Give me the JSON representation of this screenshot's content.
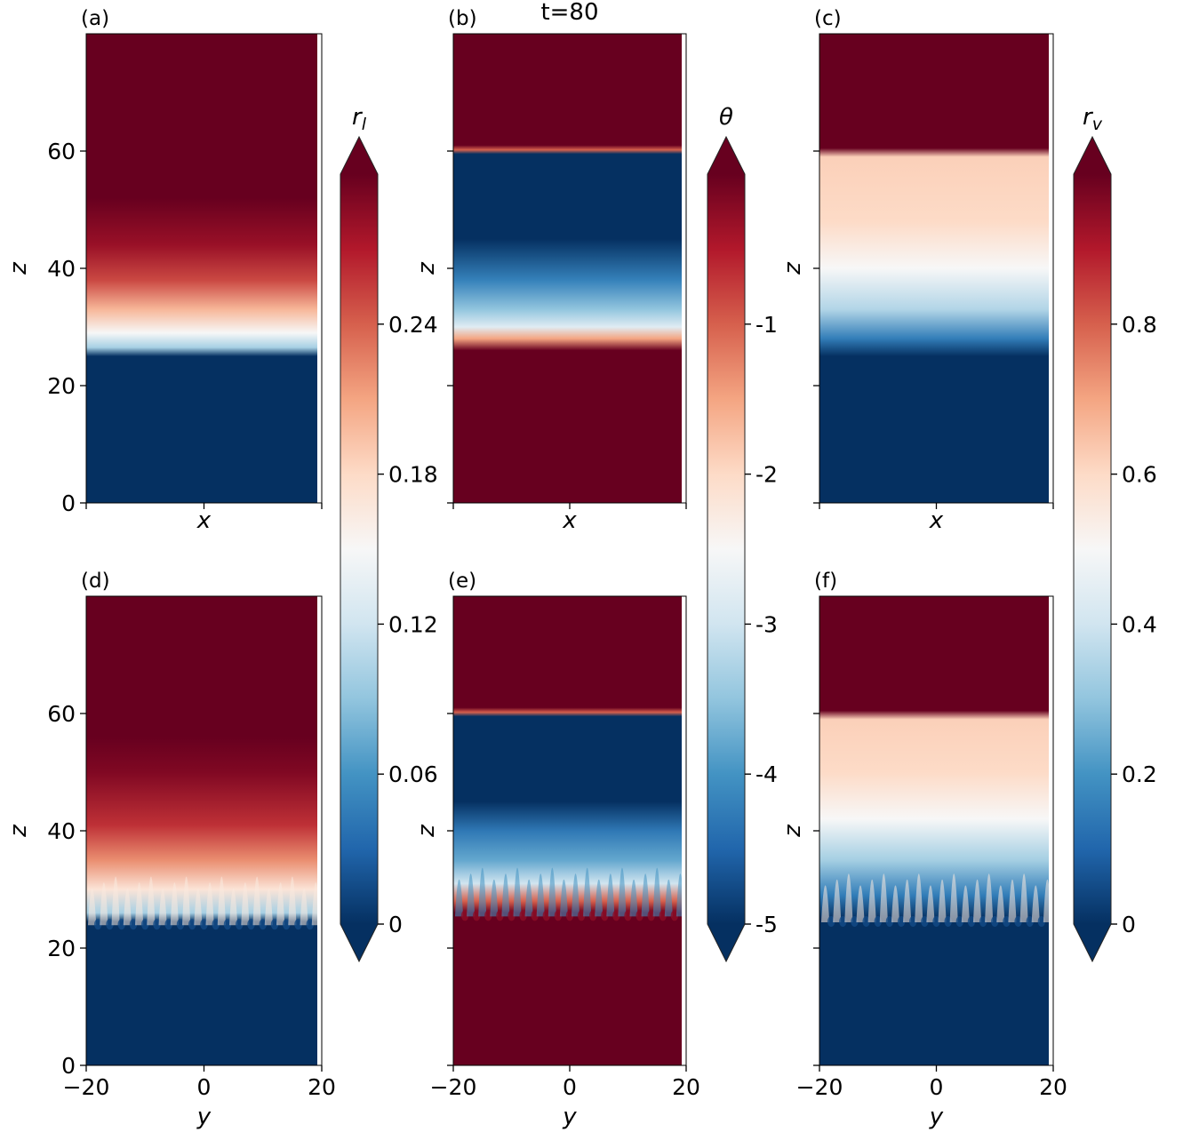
{
  "figure_title": "t=80",
  "chart_data": [
    {
      "panel": "(a)",
      "type": "heatmap",
      "xlabel": "x",
      "ylabel": "z",
      "yticks": [
        "0",
        "20",
        "40",
        "60"
      ],
      "ylim": [
        0,
        80
      ],
      "field": "rl",
      "cross_section": "x-z",
      "profile": [
        {
          "z": 0,
          "value": 0.0
        },
        {
          "z": 25,
          "value": 0.0
        },
        {
          "z": 26.5,
          "value": 0.1
        },
        {
          "z": 29,
          "value": 0.15
        },
        {
          "z": 33,
          "value": 0.2
        },
        {
          "z": 38,
          "value": 0.25
        },
        {
          "z": 44,
          "value": 0.28
        },
        {
          "z": 52,
          "value": 0.3
        },
        {
          "z": 80,
          "value": 0.3
        }
      ]
    },
    {
      "panel": "(b)",
      "type": "heatmap",
      "xlabel": "x",
      "ylabel": "z",
      "ylim": [
        0,
        80
      ],
      "field": "theta",
      "cross_section": "x-z",
      "profile": [
        {
          "z": 0,
          "value": 0.0
        },
        {
          "z": 26,
          "value": 0.0
        },
        {
          "z": 28,
          "value": -1.5
        },
        {
          "z": 30,
          "value": -2.8
        },
        {
          "z": 33,
          "value": -3.5
        },
        {
          "z": 38,
          "value": -4.2
        },
        {
          "z": 45,
          "value": -5.0
        },
        {
          "z": 59.5,
          "value": -5.0
        },
        {
          "z": 60.2,
          "value": -1.0
        },
        {
          "z": 61,
          "value": 0.0
        },
        {
          "z": 80,
          "value": 0.0
        }
      ]
    },
    {
      "panel": "(c)",
      "type": "heatmap",
      "xlabel": "x",
      "ylabel": "z",
      "ylim": [
        0,
        80
      ],
      "field": "rv",
      "cross_section": "x-z",
      "profile": [
        {
          "z": 0,
          "value": 0.0
        },
        {
          "z": 25,
          "value": 0.0
        },
        {
          "z": 28,
          "value": 0.15
        },
        {
          "z": 33,
          "value": 0.35
        },
        {
          "z": 40,
          "value": 0.5
        },
        {
          "z": 48,
          "value": 0.6
        },
        {
          "z": 59,
          "value": 0.62
        },
        {
          "z": 60.5,
          "value": 1.0
        },
        {
          "z": 80,
          "value": 1.0
        }
      ]
    },
    {
      "panel": "(d)",
      "type": "heatmap",
      "xlabel": "y",
      "ylabel": "z",
      "xticks": [
        "−20",
        "0",
        "20"
      ],
      "yticks": [
        "0",
        "20",
        "40",
        "60"
      ],
      "xlim": [
        -20,
        20
      ],
      "ylim": [
        0,
        80
      ],
      "field": "rl",
      "cross_section": "y-z",
      "plume_count": 20,
      "profile": [
        {
          "z": 0,
          "value": 0.0
        },
        {
          "z": 24.5,
          "value": 0.0
        },
        {
          "z": 26,
          "value": 0.1
        },
        {
          "z": 30,
          "value": 0.17
        },
        {
          "z": 35,
          "value": 0.22
        },
        {
          "z": 41,
          "value": 0.26
        },
        {
          "z": 50,
          "value": 0.29
        },
        {
          "z": 56,
          "value": 0.3
        },
        {
          "z": 80,
          "value": 0.3
        }
      ]
    },
    {
      "panel": "(e)",
      "type": "heatmap",
      "xlabel": "y",
      "ylabel": "z",
      "xticks": [
        "−20",
        "0",
        "20"
      ],
      "xlim": [
        -20,
        20
      ],
      "ylim": [
        0,
        80
      ],
      "field": "theta",
      "cross_section": "y-z",
      "plume_count": 20,
      "profile": [
        {
          "z": 0,
          "value": 0.0
        },
        {
          "z": 26,
          "value": 0.0
        },
        {
          "z": 28,
          "value": -1.0
        },
        {
          "z": 31,
          "value": -3.0
        },
        {
          "z": 35,
          "value": -3.8
        },
        {
          "z": 40,
          "value": -4.3
        },
        {
          "z": 45,
          "value": -5.0
        },
        {
          "z": 59.5,
          "value": -5.0
        },
        {
          "z": 60.2,
          "value": -1.0
        },
        {
          "z": 61,
          "value": 0.0
        },
        {
          "z": 80,
          "value": 0.0
        }
      ]
    },
    {
      "panel": "(f)",
      "type": "heatmap",
      "xlabel": "y",
      "ylabel": "z",
      "xticks": [
        "−20",
        "0",
        "20"
      ],
      "xlim": [
        -20,
        20
      ],
      "ylim": [
        0,
        80
      ],
      "field": "rv",
      "cross_section": "y-z",
      "plume_count": 20,
      "profile": [
        {
          "z": 0,
          "value": 0.0
        },
        {
          "z": 25,
          "value": 0.0
        },
        {
          "z": 29,
          "value": 0.15
        },
        {
          "z": 35,
          "value": 0.33
        },
        {
          "z": 42,
          "value": 0.5
        },
        {
          "z": 50,
          "value": 0.6
        },
        {
          "z": 59,
          "value": 0.62
        },
        {
          "z": 60.5,
          "value": 1.0
        },
        {
          "z": 80,
          "value": 1.0
        }
      ]
    }
  ],
  "colorbars": [
    {
      "field": "rl",
      "label": "r",
      "label_sub": "l",
      "vmin": 0,
      "vmax": 0.3,
      "ticks": [
        0,
        0.06,
        0.12,
        0.18,
        0.24
      ],
      "tick_labels": [
        "0",
        "0.06",
        "0.12",
        "0.18",
        "0.24"
      ],
      "extend": "both"
    },
    {
      "field": "theta",
      "label": "θ",
      "vmin": -5,
      "vmax": 0,
      "ticks": [
        -5,
        -4,
        -3,
        -2,
        -1
      ],
      "tick_labels": [
        "-5",
        "-4",
        "-3",
        "-2",
        "-1"
      ],
      "extend": "both"
    },
    {
      "field": "rv",
      "label": "r",
      "label_sub": "v",
      "vmin": 0,
      "vmax": 1.0,
      "ticks": [
        0,
        0.2,
        0.4,
        0.6,
        0.8
      ],
      "tick_labels": [
        "0",
        "0.2",
        "0.4",
        "0.6",
        "0.8"
      ],
      "extend": "both"
    }
  ],
  "colormap": [
    "#053061",
    "#2166ac",
    "#4393c3",
    "#92c5de",
    "#d1e5f0",
    "#f7f7f7",
    "#fddbc7",
    "#f4a582",
    "#d6604d",
    "#b2182b",
    "#67001f"
  ]
}
